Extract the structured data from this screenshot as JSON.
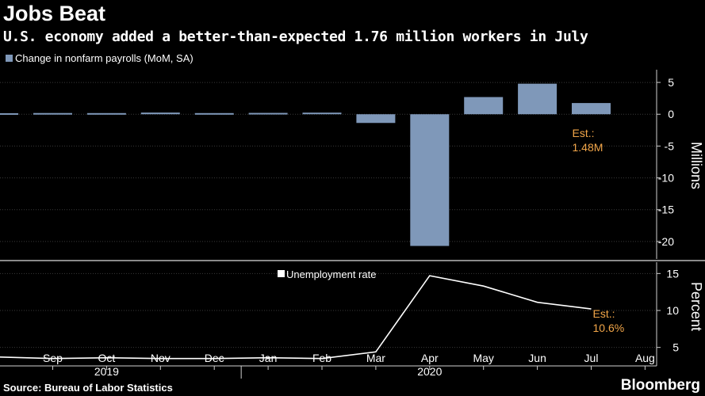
{
  "header": {
    "title": "Jobs Beat",
    "subtitle": "U.S. economy added a better-than-expected 1.76 million workers in July"
  },
  "footer": {
    "source": "Source: Bureau of Labor Statistics",
    "brand": "Bloomberg"
  },
  "colors": {
    "background": "#000000",
    "bar": "#7f98b9",
    "line": "#ffffff",
    "annotation": "#f2a649",
    "grid": "#3a3a3a"
  },
  "chart_data": [
    {
      "type": "bar",
      "legend": "Change in nonfarm payrolls (MoM, SA)",
      "ylabel": "Millions",
      "ylim": [
        -22.5,
        7
      ],
      "yticks": [
        5,
        0,
        -5,
        -10,
        -15,
        -20
      ],
      "grid": true,
      "x": [
        "2019-08",
        "2019-09",
        "2019-10",
        "2019-11",
        "2019-12",
        "2020-01",
        "2020-02",
        "2020-03",
        "2020-04",
        "2020-05",
        "2020-06",
        "2020-07"
      ],
      "values": [
        0.16,
        0.19,
        0.18,
        0.26,
        0.18,
        0.21,
        0.25,
        -1.37,
        -20.7,
        2.7,
        4.8,
        1.76
      ],
      "annotation": {
        "x": "2020-07",
        "lines": [
          "Est.:",
          "1.48M"
        ]
      }
    },
    {
      "type": "line",
      "legend": "Unemployment rate",
      "ylabel": "Percent",
      "ylim": [
        2.5,
        16
      ],
      "yticks": [
        15,
        10,
        5
      ],
      "grid": true,
      "x": [
        "2019-08",
        "2019-09",
        "2019-10",
        "2019-11",
        "2019-12",
        "2020-01",
        "2020-02",
        "2020-03",
        "2020-04",
        "2020-05",
        "2020-06",
        "2020-07"
      ],
      "values": [
        3.7,
        3.5,
        3.6,
        3.5,
        3.5,
        3.6,
        3.5,
        4.4,
        14.7,
        13.3,
        11.1,
        10.2
      ],
      "annotation": {
        "x": "2020-07",
        "lines": [
          "Est.:",
          "10.6%"
        ]
      }
    }
  ],
  "xaxis": {
    "month_labels": [
      "Sep",
      "Oct",
      "Nov",
      "Dec",
      "Jan",
      "Feb",
      "Mar",
      "Apr",
      "May",
      "Jun",
      "Jul",
      "Aug"
    ],
    "month_x": [
      "2019-09",
      "2019-10",
      "2019-11",
      "2019-12",
      "2020-01",
      "2020-02",
      "2020-03",
      "2020-04",
      "2020-05",
      "2020-06",
      "2020-07",
      "2020-08"
    ],
    "year_labels": [
      "2019",
      "2020"
    ],
    "year_x": [
      "2019-10",
      "2020-04"
    ]
  }
}
